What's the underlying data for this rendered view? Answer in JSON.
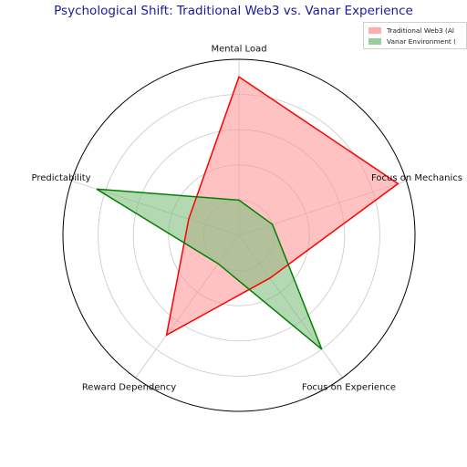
{
  "chart_data": {
    "type": "radar",
    "title": "Psychological Shift: Traditional Web3 vs. Vanar Experience",
    "axes": [
      "Mental Load",
      "Focus on Mechanics",
      "Focus on Experience",
      "Reward Dependency",
      "Predictability"
    ],
    "rlim": [
      0,
      10
    ],
    "grid": true,
    "legend_position": "top-right",
    "series": [
      {
        "name": "Traditional Web3 (Al",
        "values": [
          9,
          9.5,
          3,
          7,
          3
        ],
        "color": "#ff0000",
        "fill": "#ff9999"
      },
      {
        "name": "Vanar Environment (",
        "values": [
          2,
          2,
          8,
          2,
          8.5
        ],
        "color": "#008000",
        "fill": "#80c080"
      }
    ]
  }
}
